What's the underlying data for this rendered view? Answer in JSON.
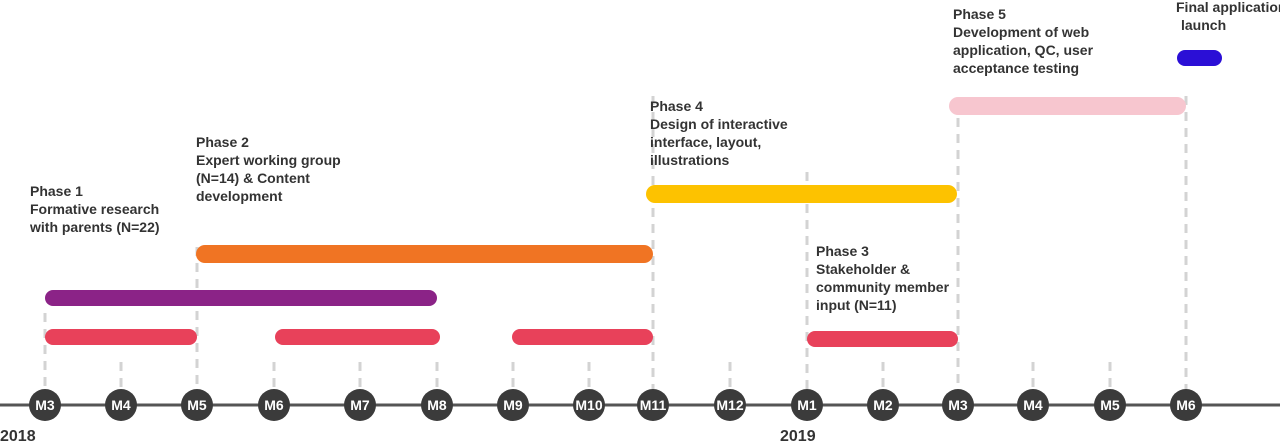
{
  "years": [
    "2018",
    "2019"
  ],
  "months": [
    "M3",
    "M4",
    "M5",
    "M6",
    "M7",
    "M8",
    "M9",
    "M10",
    "M11",
    "M12",
    "M1",
    "M2",
    "M3",
    "M4",
    "M5",
    "M6"
  ],
  "phases": [
    {
      "id": "phase1",
      "lines": [
        "Phase 1",
        "Formative research",
        "with parents (N=22)"
      ]
    },
    {
      "id": "phase2",
      "lines": [
        "Phase 2",
        "Expert working group",
        "(N=14) & Content",
        "development"
      ]
    },
    {
      "id": "phase4",
      "lines": [
        "Phase 4",
        "Design of interactive",
        "interface, layout,",
        "illustrations"
      ]
    },
    {
      "id": "phase3",
      "lines": [
        "Phase 3",
        "Stakeholder &",
        "community member",
        "input (N=11)"
      ]
    },
    {
      "id": "phase5",
      "lines": [
        "Phase 5",
        "Development of web",
        "application, QC, user",
        "acceptance testing"
      ]
    },
    {
      "id": "launch",
      "lines": [
        "Final application",
        "launch"
      ]
    }
  ],
  "bars": [
    {
      "id": "phase1-main",
      "color": "#8B2387"
    },
    {
      "id": "phase1-seg-a",
      "color": "#E8415A"
    },
    {
      "id": "phase1-seg-b",
      "color": "#E8415A"
    },
    {
      "id": "phase1-seg-c",
      "color": "#E8415A"
    },
    {
      "id": "phase2",
      "color": "#F07423"
    },
    {
      "id": "phase4",
      "color": "#FDC200"
    },
    {
      "id": "phase3",
      "color": "#E8415A"
    },
    {
      "id": "phase5",
      "color": "#F7C6CF"
    },
    {
      "id": "launch",
      "color": "#2B0FD6"
    }
  ],
  "colors": {
    "axis": "#555555",
    "circle": "#3B3B3B",
    "dash": "#D3D3D3",
    "text": "#333333"
  }
}
